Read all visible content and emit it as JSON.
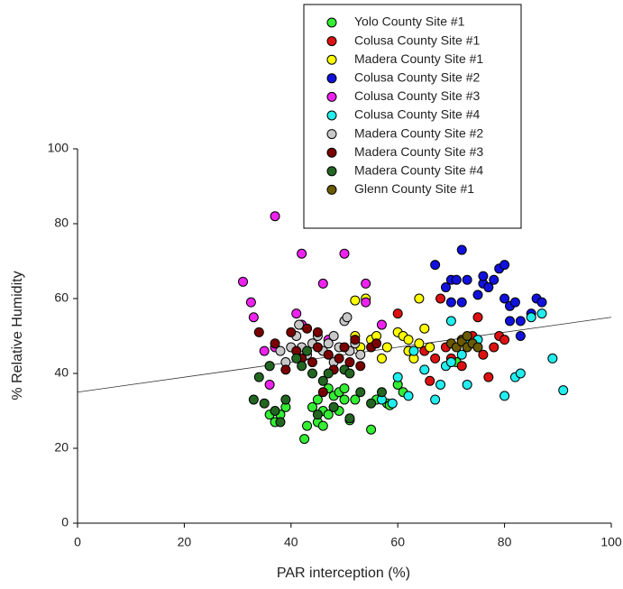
{
  "chart_data": {
    "type": "scatter",
    "x_label": "PAR interception (%)",
    "y_label": "% Relative Humidity",
    "xlim": [
      0,
      100
    ],
    "ylim": [
      0,
      100
    ],
    "xticks": [
      0,
      20,
      40,
      60,
      80,
      100
    ],
    "yticks": [
      0,
      20,
      40,
      60,
      80,
      100
    ],
    "trendline": {
      "x": [
        0,
        100
      ],
      "values": [
        35,
        55
      ]
    },
    "series": [
      {
        "name": "Yolo County Site #1",
        "color": "#33ee33",
        "x": [
          36,
          37,
          38,
          39,
          42.5,
          43,
          44,
          45,
          45,
          46,
          46,
          47,
          47,
          48,
          48,
          49,
          49,
          50,
          50,
          51,
          52,
          55,
          56,
          58,
          58.5,
          60,
          61,
          71
        ],
        "values": [
          29,
          27,
          29,
          31,
          22.5,
          26,
          31,
          27,
          33,
          26,
          30,
          36,
          29,
          31,
          34,
          30,
          35,
          33,
          36,
          27.5,
          33,
          25,
          33,
          32,
          31.5,
          37,
          35,
          43
        ]
      },
      {
        "name": "Colusa County Site #1",
        "color": "#dd1111",
        "x": [
          60,
          62,
          65,
          66,
          67,
          68,
          69,
          70,
          72,
          74,
          75,
          76,
          77,
          78,
          79,
          80
        ],
        "values": [
          56,
          46,
          46,
          38,
          44,
          60,
          47,
          44,
          42,
          50,
          55,
          45,
          39,
          47,
          50,
          49
        ]
      },
      {
        "name": "Madera County Site #1",
        "color": "#ffff00",
        "x": [
          52,
          52,
          53,
          54,
          55,
          56,
          57,
          58,
          60,
          61,
          62,
          62,
          63,
          64,
          64,
          65,
          66
        ],
        "values": [
          59.5,
          50,
          47,
          60,
          49,
          50,
          44,
          47,
          51,
          50,
          46,
          49,
          44,
          60,
          48,
          52,
          47
        ]
      },
      {
        "name": "Colusa County Site #2",
        "color": "#1111dd",
        "x": [
          67,
          69,
          70,
          70,
          71,
          72,
          72,
          73,
          75,
          76,
          76,
          77,
          78,
          79,
          80,
          80,
          81,
          81,
          82,
          83,
          83,
          85,
          86,
          87
        ],
        "values": [
          69,
          63,
          59,
          65,
          65,
          73,
          59,
          65,
          61,
          64,
          66,
          63,
          65,
          68,
          69,
          60,
          54,
          58,
          59,
          50,
          54,
          56,
          60,
          59
        ]
      },
      {
        "name": "Colusa County Site #3",
        "color": "#ee22ee",
        "x": [
          31,
          32.5,
          33,
          35,
          36,
          37,
          37,
          41,
          42,
          42,
          46,
          47,
          50,
          54,
          54,
          57
        ],
        "values": [
          64.5,
          59,
          55,
          46,
          37,
          82,
          47,
          56,
          53,
          72,
          64,
          49,
          72,
          64,
          59,
          53
        ]
      },
      {
        "name": "Colusa County Site #4",
        "color": "#22eeee",
        "x": [
          57,
          59,
          60,
          62,
          63,
          65,
          67,
          68,
          69,
          70,
          70,
          72,
          73,
          73,
          75,
          80,
          82,
          83,
          85,
          87,
          89,
          91
        ],
        "values": [
          33,
          32,
          39,
          34,
          46,
          41,
          33,
          37,
          42,
          43,
          54,
          45,
          37,
          48,
          49,
          34,
          39,
          40,
          55,
          56,
          44,
          35.5
        ]
      },
      {
        "name": "Madera County Site #2",
        "color": "#c8c8c8",
        "x": [
          36,
          38,
          39,
          40,
          41,
          41.5,
          42,
          43,
          44,
          45,
          46,
          47,
          48,
          48,
          49,
          50,
          50.5,
          51,
          52,
          53
        ],
        "values": [
          42,
          46,
          43,
          47,
          50,
          53,
          47,
          45,
          48,
          50,
          46,
          48,
          43,
          50,
          47,
          54,
          55,
          46,
          48,
          45
        ]
      },
      {
        "name": "Madera County Site #3",
        "color": "#7a0000",
        "x": [
          34,
          37,
          39,
          40,
          41,
          42,
          43,
          44,
          45,
          45,
          46,
          47,
          48,
          49,
          50,
          51,
          52,
          53,
          55,
          56
        ],
        "values": [
          51,
          48,
          41,
          51,
          46,
          44,
          52,
          43,
          47,
          51,
          35,
          45,
          41,
          44,
          47,
          43,
          49,
          42,
          47,
          48
        ]
      },
      {
        "name": "Madera County Site #4",
        "color": "#226622",
        "x": [
          33,
          34,
          35,
          36,
          37,
          38,
          39,
          41,
          42,
          43,
          44,
          45,
          46,
          47,
          48,
          50,
          51,
          51,
          53,
          55,
          57
        ],
        "values": [
          33,
          39,
          32,
          42,
          30,
          27,
          33,
          44,
          42,
          46,
          40,
          29,
          38,
          40,
          31,
          41,
          40,
          28,
          35,
          32,
          35
        ]
      },
      {
        "name": "Glenn County Site #1",
        "color": "#6b5a00",
        "x": [
          70,
          71,
          72,
          72,
          73,
          73,
          74,
          75
        ],
        "values": [
          48,
          47,
          49,
          48.5,
          50,
          47,
          48,
          47
        ]
      }
    ]
  }
}
